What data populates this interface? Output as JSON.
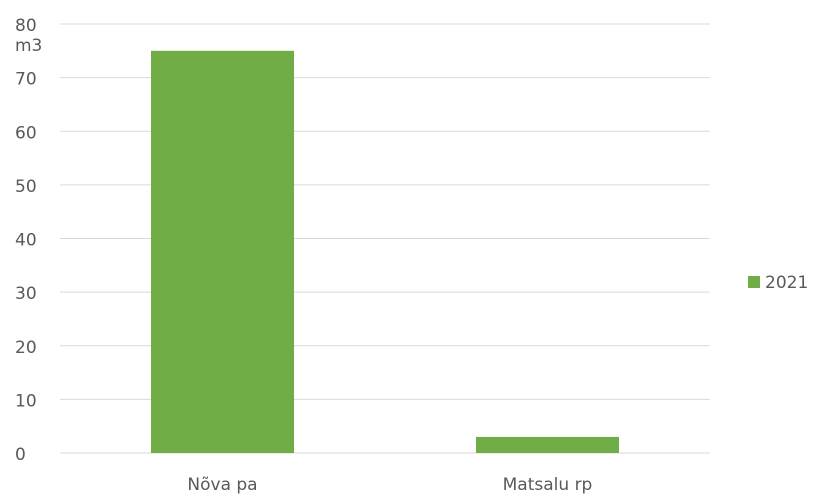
{
  "chart_data": {
    "type": "bar",
    "y_label": "m3",
    "categories": [
      "Nõva pa",
      "Matsalu rp"
    ],
    "series": [
      {
        "name": "2021",
        "color": "#70ad47",
        "values": [
          75,
          3
        ]
      }
    ],
    "ylim": [
      0,
      80
    ],
    "yticks": [
      0,
      10,
      20,
      30,
      40,
      50,
      60,
      70,
      80
    ],
    "grid": true,
    "legend": "right"
  }
}
